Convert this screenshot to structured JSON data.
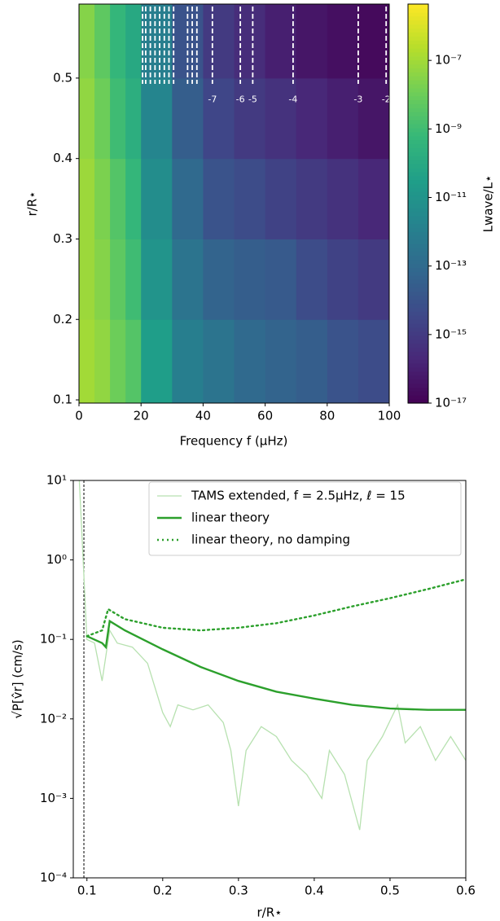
{
  "chart_data": [
    {
      "type": "heatmap",
      "x_label": "Frequency f (μHz)",
      "y_label": "r/R⋆",
      "colorbar_label": "Lwave/L⋆",
      "x_edges": [
        0,
        5,
        10,
        15,
        20,
        30,
        40,
        50,
        60,
        70,
        80,
        90,
        100
      ],
      "y_edges": [
        0.096,
        0.2,
        0.3,
        0.4,
        0.5,
        0.592
      ],
      "values": [
        [
          1e-07,
          5e-08,
          1e-08,
          3e-09,
          3e-11,
          1e-12,
          3e-13,
          1e-13,
          5e-14,
          3e-14,
          1e-14,
          5e-15
        ],
        [
          8e-08,
          3e-08,
          5e-09,
          1e-09,
          1e-11,
          3e-13,
          5e-14,
          3e-14,
          2e-14,
          5e-15,
          2e-15,
          1e-15
        ],
        [
          8e-08,
          2e-08,
          3e-09,
          5e-10,
          5e-12,
          1e-13,
          1e-14,
          5e-15,
          2e-15,
          1e-15,
          5e-16,
          2e-16
        ],
        [
          5e-08,
          1e-08,
          1e-09,
          2e-10,
          2e-12,
          3e-14,
          3e-15,
          1e-15,
          5e-16,
          2e-16,
          1e-16,
          5e-17
        ],
        [
          3e-08,
          5e-09,
          5e-10,
          1e-10,
          1e-12,
          1e-14,
          1e-15,
          3e-16,
          1e-16,
          5e-17,
          3e-17,
          2e-17
        ]
      ],
      "xlim": [
        0,
        100
      ],
      "ylim": [
        0.096,
        0.592
      ],
      "xticks": [
        0,
        20,
        40,
        60,
        80,
        100
      ],
      "yticks": [
        0.1,
        0.2,
        0.3,
        0.4,
        0.5
      ],
      "clim": [
        1e-17,
        4.4e-06
      ],
      "color_scale": "log",
      "colormap": "viridis",
      "cticks": [
        {
          "value": 1e-07,
          "label": "10⁻⁷"
        },
        {
          "value": 1e-09,
          "label": "10⁻⁹"
        },
        {
          "value": 1e-11,
          "label": "10⁻¹¹"
        },
        {
          "value": 1e-13,
          "label": "10⁻¹³"
        },
        {
          "value": 1e-15,
          "label": "10⁻¹⁵"
        },
        {
          "value": 1e-17,
          "label": "10⁻¹⁷"
        }
      ],
      "mode_lines": {
        "color": "#ffffff",
        "x": [
          20.5,
          21.5,
          23,
          24.5,
          26,
          27.5,
          29,
          30.5,
          35,
          36.5,
          38,
          43,
          52,
          56,
          69,
          90,
          99
        ],
        "labels": [
          null,
          null,
          null,
          null,
          null,
          null,
          null,
          null,
          null,
          null,
          null,
          "-7",
          "-6",
          "-5",
          "-4",
          "-3",
          "-2"
        ]
      }
    },
    {
      "type": "line",
      "x_label": "r/R⋆",
      "y_label": "√P[v̂r] (cm/s)",
      "xlim": [
        0.082,
        0.6
      ],
      "ylim": [
        0.0001,
        10
      ],
      "y_scale": "log",
      "xticks": [
        0.1,
        0.2,
        0.3,
        0.4,
        0.5,
        0.6
      ],
      "yticks": [
        {
          "value": 0.0001,
          "label": "10⁻⁴"
        },
        {
          "value": 0.001,
          "label": "10⁻³"
        },
        {
          "value": 0.01,
          "label": "10⁻²"
        },
        {
          "value": 0.1,
          "label": "10⁻¹"
        },
        {
          "value": 1,
          "label": "10⁰"
        },
        {
          "value": 10,
          "label": "10¹"
        }
      ],
      "vlines": [
        0.096
      ],
      "legend": "upper right",
      "series": [
        {
          "name": "TAMS extended, f = 2.5μHz, ℓ = 15",
          "color": "#b7e1b0",
          "style": "solid",
          "x": [
            0.09,
            0.095,
            0.1,
            0.11,
            0.12,
            0.13,
            0.14,
            0.16,
            0.18,
            0.2,
            0.21,
            0.22,
            0.24,
            0.26,
            0.28,
            0.29,
            0.3,
            0.31,
            0.33,
            0.35,
            0.37,
            0.39,
            0.41,
            0.42,
            0.44,
            0.46,
            0.47,
            0.49,
            0.51,
            0.52,
            0.54,
            0.56,
            0.58,
            0.6
          ],
          "values": [
            10,
            1,
            0.1,
            0.09,
            0.03,
            0.13,
            0.09,
            0.08,
            0.05,
            0.012,
            0.008,
            0.015,
            0.013,
            0.015,
            0.009,
            0.004,
            0.0008,
            0.004,
            0.008,
            0.006,
            0.003,
            0.002,
            0.001,
            0.004,
            0.002,
            0.0004,
            0.003,
            0.006,
            0.015,
            0.005,
            0.008,
            0.003,
            0.006,
            0.003
          ]
        },
        {
          "name": "linear theory",
          "color": "#2ca02c",
          "style": "solid",
          "x": [
            0.1,
            0.12,
            0.125,
            0.13,
            0.15,
            0.2,
            0.25,
            0.3,
            0.35,
            0.4,
            0.45,
            0.5,
            0.55,
            0.6
          ],
          "values": [
            0.11,
            0.09,
            0.08,
            0.17,
            0.13,
            0.075,
            0.045,
            0.03,
            0.022,
            0.018,
            0.015,
            0.0135,
            0.013,
            0.013
          ]
        },
        {
          "name": "linear theory, no damping",
          "color": "#2ca02c",
          "style": "dotted",
          "x": [
            0.1,
            0.12,
            0.128,
            0.15,
            0.2,
            0.25,
            0.3,
            0.35,
            0.4,
            0.45,
            0.5,
            0.55,
            0.6
          ],
          "values": [
            0.11,
            0.13,
            0.24,
            0.18,
            0.14,
            0.13,
            0.14,
            0.16,
            0.2,
            0.26,
            0.33,
            0.43,
            0.57
          ]
        }
      ]
    }
  ]
}
